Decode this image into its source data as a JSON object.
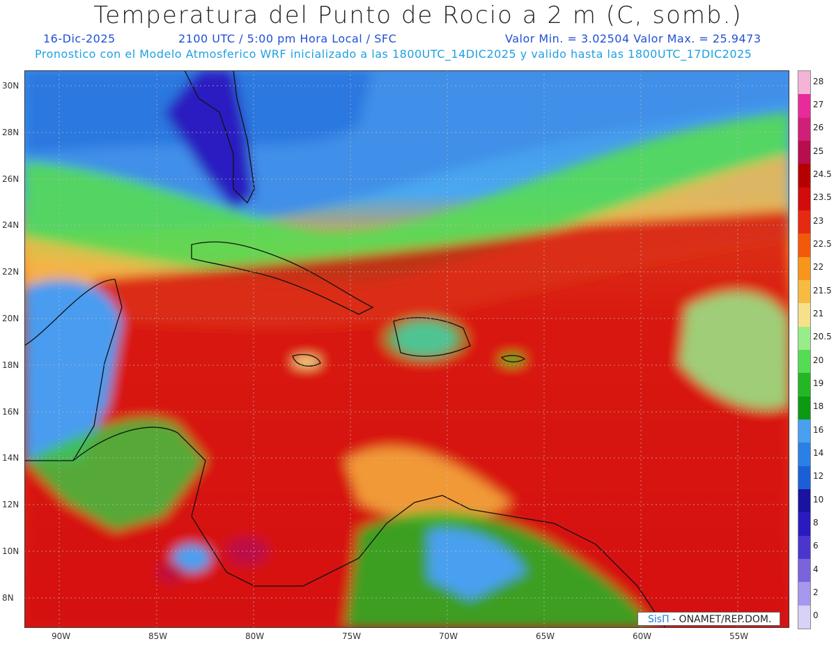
{
  "title": "Temperatura del Punto de Rocio a 2 m (C, somb.)",
  "line1": {
    "date": "16-Dic-2025",
    "time": "2100 UTC / 5:00 pm Hora Local / SFC",
    "minmax": "Valor Min. = 3.02504  Valor Max. = 25.9473"
  },
  "line2": "Pronostico con el Modelo Atmosferico WRF inicializado a las 1800UTC_14DIC2025 y valido hasta las  1800UTC_17DIC2025",
  "lat_ticks": [
    "30N",
    "28N",
    "26N",
    "24N",
    "22N",
    "20N",
    "18N",
    "16N",
    "14N",
    "12N",
    "10N",
    "8N"
  ],
  "lon_ticks": [
    "90W",
    "85W",
    "80W",
    "75W",
    "70W",
    "65W",
    "60W",
    "55W"
  ],
  "legend": {
    "labels": [
      "28",
      "27",
      "26",
      "25",
      "24.5",
      "23.5",
      "23",
      "22.5",
      "22",
      "21.5",
      "21",
      "20.5",
      "20",
      "19",
      "18",
      "16",
      "14",
      "12",
      "10",
      "8",
      "6",
      "4",
      "2",
      "0"
    ],
    "colors": [
      "#f5b3d8",
      "#e82a9a",
      "#d01f78",
      "#b80e4e",
      "#b60000",
      "#d40b0b",
      "#e52a12",
      "#f25a0a",
      "#f7961a",
      "#f7bb42",
      "#f7e08a",
      "#98ed8a",
      "#55dc55",
      "#23b823",
      "#0c9a12",
      "#4aa0f0",
      "#2b80e8",
      "#1a5fd8",
      "#1a12a0",
      "#2a1bc0",
      "#4a36cc",
      "#7b63dc",
      "#a897ee",
      "#d7d2f6"
    ]
  },
  "credit": {
    "brand": "SisΠ",
    "text": " - ONAMET/REP.DOM."
  }
}
